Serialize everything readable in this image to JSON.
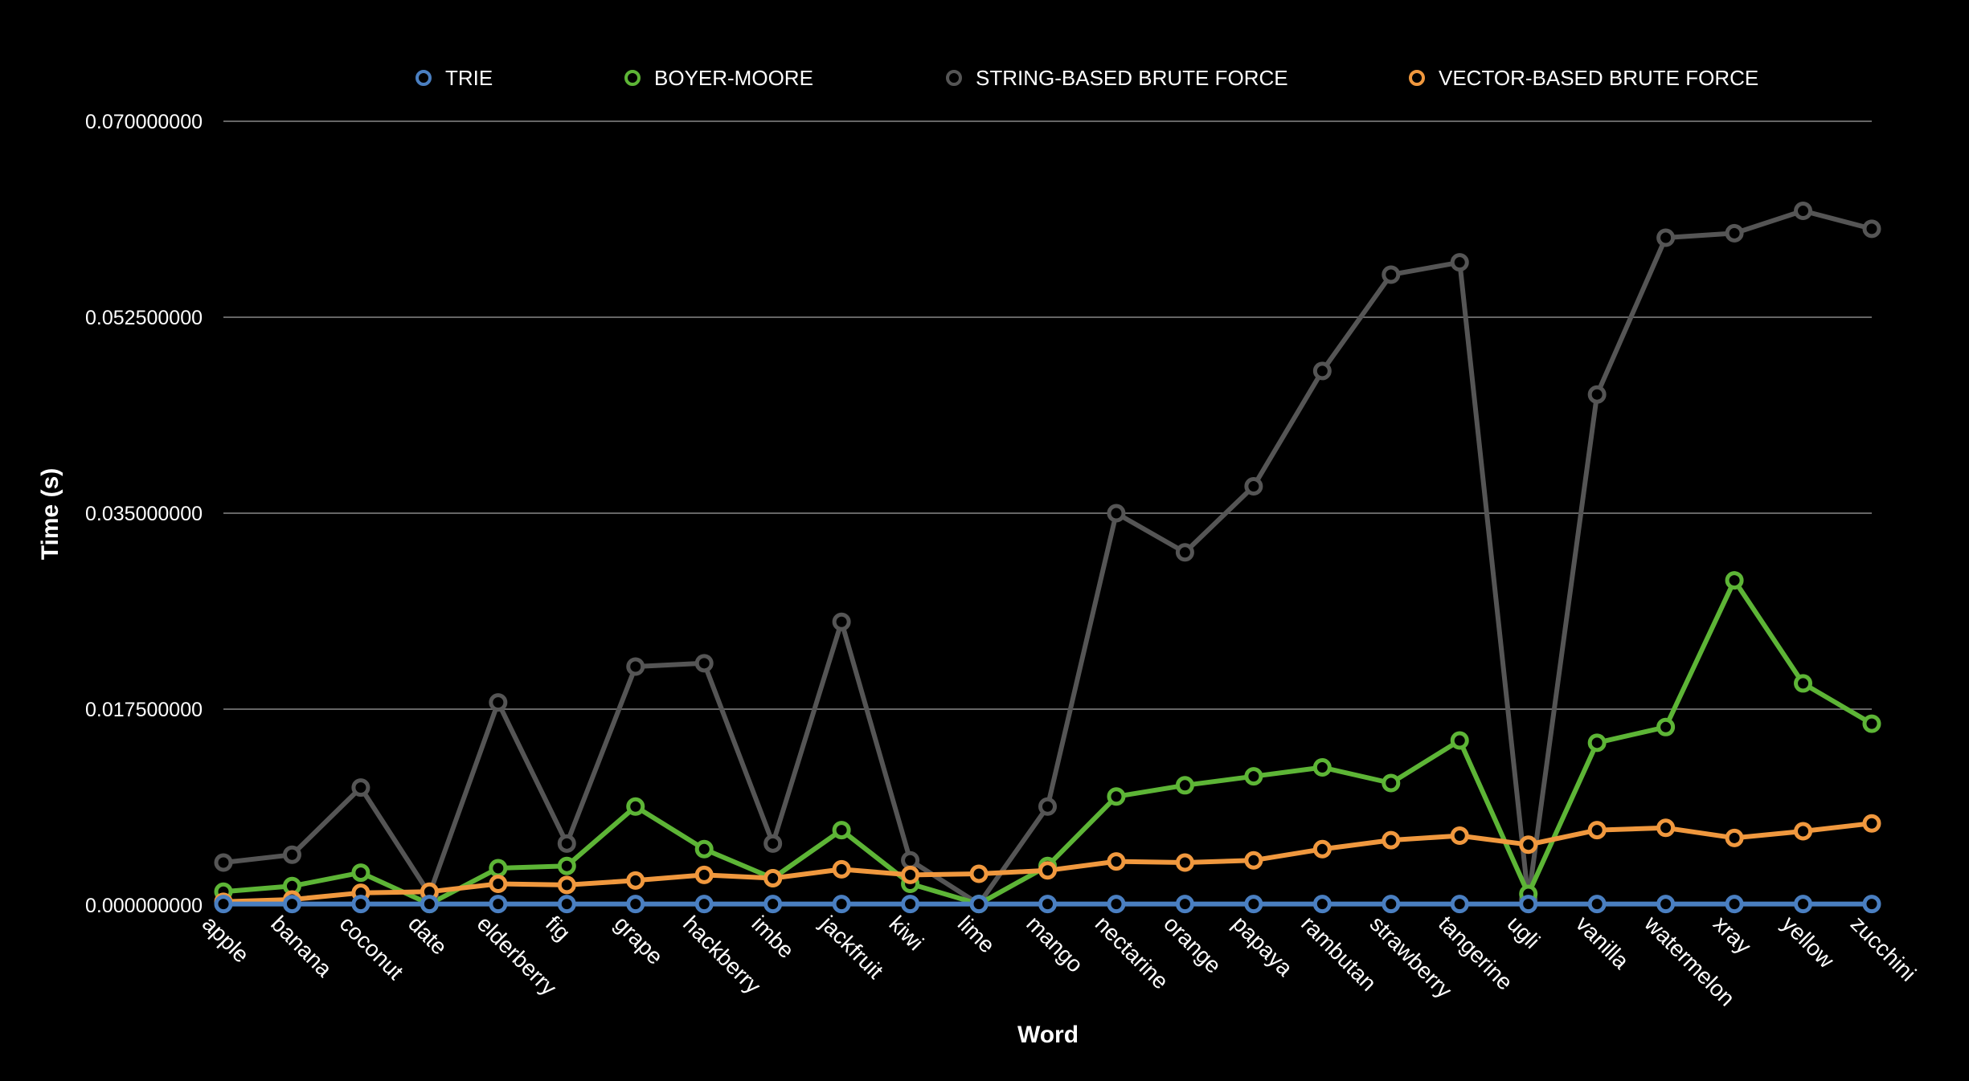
{
  "chart_data": {
    "type": "line",
    "title": "",
    "xlabel": "Word",
    "ylabel": "Time (s)",
    "ylim": [
      0,
      0.07
    ],
    "y_ticks": [
      "0.000000000",
      "0.017500000",
      "0.035000000",
      "0.052500000",
      "0.070000000"
    ],
    "y_tick_values": [
      0,
      0.0175,
      0.035,
      0.0525,
      0.07
    ],
    "grid": true,
    "legend_position": "top",
    "categories": [
      "apple",
      "banana",
      "coconut",
      "date",
      "elderberry",
      "fig",
      "grape",
      "hackberry",
      "imbe",
      "jackfruit",
      "kiwi",
      "lime",
      "mango",
      "nectarine",
      "orange",
      "papaya",
      "rambutan",
      "strawberry",
      "tangerine",
      "ugli",
      "vanilla",
      "watermelon",
      "xray",
      "yellow",
      "zucchini"
    ],
    "series": [
      {
        "name": "TRIE",
        "color": "#4a7fc1",
        "values": [
          0.0001,
          0.0001,
          0.0001,
          0.0001,
          0.0001,
          0.0001,
          0.0001,
          0.0001,
          0.0001,
          0.0001,
          0.0001,
          0.0001,
          0.0001,
          0.0001,
          0.0001,
          0.0001,
          0.0001,
          0.0001,
          0.0001,
          0.0001,
          0.0001,
          0.0001,
          0.0001,
          0.0001,
          0.0001
        ]
      },
      {
        "name": "BOYER-MOORE",
        "color": "#5db536",
        "values": [
          0.0012,
          0.0017,
          0.0029,
          0.0001,
          0.0033,
          0.0035,
          0.0088,
          0.005,
          0.0024,
          0.0067,
          0.0019,
          0.0001,
          0.0035,
          0.0097,
          0.0107,
          0.0115,
          0.0123,
          0.0109,
          0.0147,
          0.001,
          0.0145,
          0.0159,
          0.029,
          0.0198,
          0.0162
        ]
      },
      {
        "name": "STRING-BASED BRUTE FORCE",
        "color": "#555555",
        "values": [
          0.0038,
          0.0045,
          0.0105,
          0.001,
          0.0181,
          0.0055,
          0.0213,
          0.0216,
          0.0055,
          0.0253,
          0.004,
          0.0001,
          0.0088,
          0.035,
          0.0315,
          0.0374,
          0.0477,
          0.0563,
          0.0574,
          0.0005,
          0.0456,
          0.0596,
          0.06,
          0.062,
          0.0604
        ]
      },
      {
        "name": "VECTOR-BASED BRUTE FORCE",
        "color": "#f0983e",
        "values": [
          0.0003,
          0.0005,
          0.0011,
          0.0012,
          0.0019,
          0.0018,
          0.0022,
          0.0027,
          0.0024,
          0.0032,
          0.0027,
          0.0028,
          0.0031,
          0.0039,
          0.0038,
          0.004,
          0.005,
          0.0058,
          0.0062,
          0.0054,
          0.0067,
          0.0069,
          0.006,
          0.0066,
          0.0073
        ]
      }
    ]
  }
}
